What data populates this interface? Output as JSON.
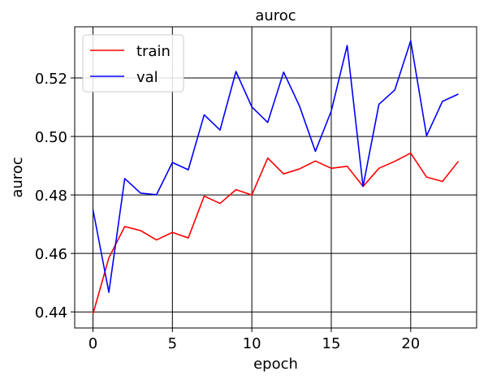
{
  "chart_data": {
    "type": "line",
    "title": "auroc",
    "xlabel": "epoch",
    "ylabel": "auroc",
    "x": [
      0,
      1,
      2,
      3,
      4,
      5,
      6,
      7,
      8,
      9,
      10,
      11,
      12,
      13,
      14,
      15,
      16,
      17,
      18,
      19,
      20,
      21,
      22,
      23
    ],
    "xlim": [
      -1.15,
      24.15
    ],
    "ylim": [
      0.4345,
      0.5375
    ],
    "xticks": [
      0,
      5,
      10,
      15,
      20
    ],
    "xtick_labels": [
      "0",
      "5",
      "10",
      "15",
      "20"
    ],
    "yticks": [
      0.44,
      0.46,
      0.48,
      0.5,
      0.52
    ],
    "ytick_labels": [
      "0.44",
      "0.46",
      "0.48",
      "0.50",
      "0.52"
    ],
    "grid": true,
    "legend_position": "top-left",
    "series": [
      {
        "name": "train",
        "color": "#ff0000",
        "values": [
          0.4393,
          0.4585,
          0.4692,
          0.4678,
          0.4646,
          0.4672,
          0.4653,
          0.4796,
          0.4771,
          0.4818,
          0.48,
          0.4926,
          0.4872,
          0.4889,
          0.4916,
          0.4891,
          0.4898,
          0.4829,
          0.4891,
          0.4915,
          0.4943,
          0.4861,
          0.4846,
          0.4915
        ]
      },
      {
        "name": "val",
        "color": "#0000ff",
        "values": [
          0.475,
          0.4467,
          0.4856,
          0.4806,
          0.4801,
          0.4911,
          0.4886,
          0.5074,
          0.5022,
          0.5222,
          0.5101,
          0.5048,
          0.522,
          0.5104,
          0.4949,
          0.5087,
          0.5311,
          0.4829,
          0.511,
          0.5159,
          0.5327,
          0.5002,
          0.512,
          0.5145
        ]
      }
    ]
  }
}
